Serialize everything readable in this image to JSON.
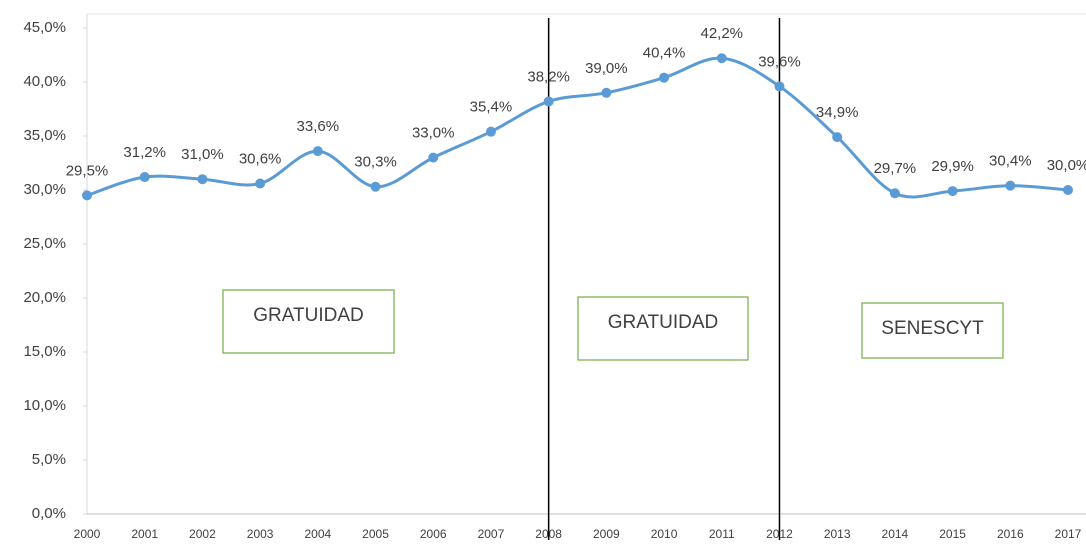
{
  "chart_data": {
    "type": "line",
    "categories": [
      "2000",
      "2001",
      "2002",
      "2003",
      "2004",
      "2005",
      "2006",
      "2007",
      "2008",
      "2009",
      "2010",
      "2011",
      "2012",
      "2013",
      "2014",
      "2015",
      "2016",
      "2017"
    ],
    "series": [
      {
        "color": "#5b9bd5",
        "values": [
          29.5,
          31.2,
          31.0,
          30.6,
          33.6,
          30.3,
          33.0,
          35.4,
          38.2,
          39.0,
          40.4,
          42.2,
          39.6,
          34.9,
          29.7,
          29.9,
          30.4,
          30.0
        ],
        "value_labels": [
          "29,5%",
          "31,2%",
          "31,0%",
          "30,6%",
          "33,6%",
          "30,3%",
          "33,0%",
          "35,4%",
          "38,2%",
          "39,0%",
          "40,4%",
          "42,2%",
          "39,6%",
          "34,9%",
          "29,7%",
          "29,9%",
          "30,4%",
          "30,0%"
        ]
      }
    ],
    "ylim": [
      0,
      45
    ],
    "yticks": [
      {
        "value": 0,
        "label": "0,0%"
      },
      {
        "value": 5,
        "label": "5,0%"
      },
      {
        "value": 10,
        "label": "10,0%"
      },
      {
        "value": 15,
        "label": "15,0%"
      },
      {
        "value": 20,
        "label": "20,0%"
      },
      {
        "value": 25,
        "label": "25,0%"
      },
      {
        "value": 30,
        "label": "30,0%"
      },
      {
        "value": 35,
        "label": "35,0%"
      },
      {
        "value": 40,
        "label": "40,0%"
      },
      {
        "value": 45,
        "label": "45,0%"
      }
    ],
    "vertical_lines_at": [
      "2008",
      "2012"
    ],
    "annotations": [
      "GRATUIDAD",
      "GRATUIDAD",
      "SENESCYT"
    ]
  }
}
